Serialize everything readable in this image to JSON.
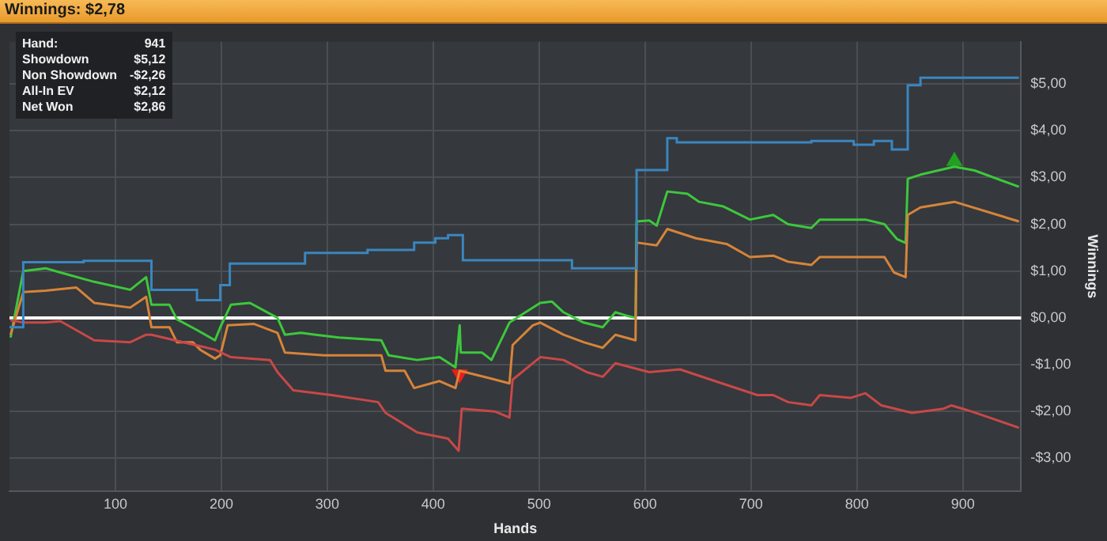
{
  "chart_data": {
    "type": "line",
    "title": "Winnings: $2,78",
    "xlabel": "Hands",
    "ylabel": "Winnings",
    "annotations": [
      "Hand:",
      "941",
      "Showdown",
      "$5,12",
      "Non Showdown",
      "-$2,26",
      "All-In EV",
      "$2,12",
      "Net Won",
      "$2,86"
    ],
    "xlim": [
      0,
      955
    ],
    "xticks": [
      100,
      200,
      300,
      400,
      500,
      600,
      700,
      800,
      900
    ],
    "ylim": [
      -3.7,
      5.9
    ],
    "yticks": [
      {
        "value": -3,
        "label": "-$3,00"
      },
      {
        "value": -2,
        "label": "-$2,00"
      },
      {
        "value": -1,
        "label": "-$1,00"
      },
      {
        "value": 0,
        "label": "$0,00"
      },
      {
        "value": 1,
        "label": "$1,00"
      },
      {
        "value": 2,
        "label": "$2,00"
      },
      {
        "value": 3,
        "label": "$3,00"
      },
      {
        "value": 4,
        "label": "$4,00"
      },
      {
        "value": 5,
        "label": "$5,00"
      }
    ],
    "grid": true,
    "ref_lines": [
      {
        "axis": "y",
        "value": 0,
        "color": "#ffffff"
      }
    ],
    "series": [
      {
        "type": "step",
        "color": "#3a86c0",
        "x": [
          0,
          13,
          70,
          134,
          177,
          199,
          208,
          279,
          338,
          382,
          402,
          414,
          428,
          531,
          592,
          621,
          630,
          757,
          797,
          816,
          833,
          848,
          860,
          953
        ],
        "values": [
          -0.2,
          1.19,
          1.22,
          0.6,
          0.38,
          0.7,
          1.16,
          1.39,
          1.45,
          1.61,
          1.7,
          1.77,
          1.23,
          1.06,
          3.16,
          3.84,
          3.75,
          3.78,
          3.7,
          3.78,
          3.6,
          4.97,
          5.13,
          5.13
        ]
      },
      {
        "color": "#c84848",
        "x": [
          1,
          13,
          34,
          48,
          80,
          114,
          129,
          134,
          194,
          209,
          246,
          253,
          268,
          304,
          348,
          355,
          385,
          414,
          424,
          427,
          458,
          472,
          475,
          501,
          523,
          545,
          560,
          572,
          604,
          633,
          662,
          706,
          721,
          735,
          757,
          765,
          794,
          808,
          823,
          852,
          882,
          889,
          904,
          925,
          953
        ],
        "values": [
          -0.05,
          -0.1,
          -0.1,
          -0.07,
          -0.48,
          -0.52,
          -0.36,
          -0.36,
          -0.68,
          -0.84,
          -0.9,
          -1.16,
          -1.55,
          -1.65,
          -1.8,
          -2.03,
          -2.45,
          -2.58,
          -2.84,
          -1.94,
          -2.0,
          -2.13,
          -1.32,
          -0.84,
          -0.9,
          -1.16,
          -1.26,
          -0.97,
          -1.16,
          -1.1,
          -1.32,
          -1.65,
          -1.65,
          -1.8,
          -1.87,
          -1.65,
          -1.71,
          -1.61,
          -1.87,
          -2.03,
          -1.94,
          -1.87,
          -1.97,
          -2.13,
          -2.35
        ]
      },
      {
        "color": "#d6843a",
        "x": [
          1,
          13,
          34,
          63,
          80,
          114,
          129,
          134,
          151,
          158,
          173,
          180,
          194,
          199,
          206,
          231,
          253,
          260,
          297,
          351,
          355,
          373,
          382,
          406,
          421,
          425,
          455,
          472,
          475,
          494,
          501,
          523,
          542,
          560,
          572,
          591,
          592,
          611,
          621,
          648,
          677,
          699,
          721,
          735,
          757,
          765,
          826,
          835,
          846,
          848,
          860,
          892,
          953
        ],
        "values": [
          -0.36,
          0.55,
          0.58,
          0.65,
          0.32,
          0.22,
          0.45,
          -0.2,
          -0.2,
          -0.52,
          -0.52,
          -0.68,
          -0.87,
          -0.8,
          -0.16,
          -0.13,
          -0.32,
          -0.74,
          -0.8,
          -0.8,
          -1.13,
          -1.13,
          -1.5,
          -1.35,
          -1.5,
          -1.13,
          -1.3,
          -1.4,
          -0.58,
          -0.16,
          -0.1,
          -0.36,
          -0.52,
          -0.64,
          -0.36,
          -0.48,
          1.61,
          1.55,
          1.9,
          1.7,
          1.58,
          1.3,
          1.33,
          1.2,
          1.13,
          1.3,
          1.3,
          0.97,
          0.87,
          2.2,
          2.36,
          2.48,
          2.06
        ]
      },
      {
        "color": "#3cc83c",
        "x": [
          1,
          13,
          34,
          48,
          80,
          114,
          129,
          134,
          151,
          158,
          177,
          194,
          199,
          209,
          227,
          253,
          260,
          275,
          289,
          311,
          351,
          358,
          385,
          406,
          421,
          425,
          426,
          446,
          455,
          472,
          501,
          512,
          523,
          542,
          560,
          572,
          582,
          591,
          592,
          604,
          611,
          621,
          640,
          651,
          674,
          699,
          721,
          735,
          757,
          765,
          808,
          826,
          838,
          846,
          848,
          860,
          892,
          911,
          953
        ],
        "values": [
          -0.42,
          1.0,
          1.06,
          0.97,
          0.77,
          0.6,
          0.87,
          0.28,
          0.28,
          -0.03,
          -0.26,
          -0.48,
          -0.2,
          0.28,
          0.32,
          0,
          -0.36,
          -0.32,
          -0.36,
          -0.42,
          -0.48,
          -0.8,
          -0.9,
          -0.84,
          -1.06,
          -0.16,
          -0.74,
          -0.74,
          -0.9,
          -0.1,
          0.32,
          0.35,
          0.12,
          -0.1,
          -0.2,
          0.12,
          0.05,
          0,
          2.06,
          2.08,
          1.97,
          2.7,
          2.65,
          2.48,
          2.38,
          2.1,
          2.2,
          2.0,
          1.92,
          2.1,
          2.1,
          2.0,
          1.68,
          1.6,
          2.97,
          3.06,
          3.23,
          3.15,
          2.8
        ]
      },
      {
        "type": "scatter",
        "marker": "triangle",
        "color": "#22a022",
        "x": [
          892
        ],
        "values": [
          3.35
        ]
      },
      {
        "type": "scatter",
        "marker": "triangle",
        "color": "#ee1c1c",
        "x": [
          425
        ],
        "values": [
          -1.2
        ]
      }
    ]
  }
}
